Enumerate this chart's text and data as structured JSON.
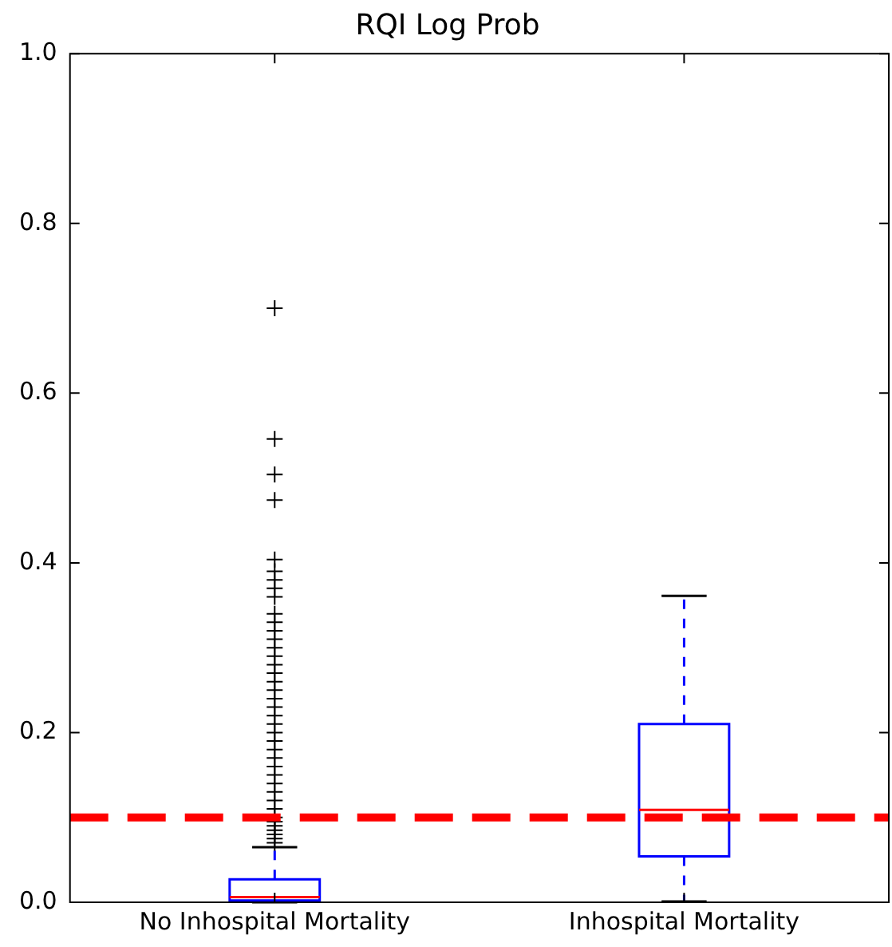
{
  "chart_data": {
    "type": "box",
    "title": "RQI Log Prob",
    "categories": [
      "No Inhospital Mortality",
      "Inhospital Mortality"
    ],
    "boxes": [
      {
        "low": 0,
        "q1": 0.002,
        "median": 0.006,
        "q3": 0.027,
        "high": 0.065,
        "outliers": [
          0.07,
          0.075,
          0.08,
          0.085,
          0.09,
          0.095,
          0.1,
          0.11,
          0.12,
          0.13,
          0.14,
          0.15,
          0.16,
          0.17,
          0.18,
          0.19,
          0.2,
          0.21,
          0.22,
          0.23,
          0.24,
          0.25,
          0.26,
          0.27,
          0.28,
          0.29,
          0.3,
          0.31,
          0.32,
          0.33,
          0.34,
          0.36,
          0.37,
          0.38,
          0.39,
          0.404,
          0.474,
          0.504,
          0.546,
          0.7
        ]
      },
      {
        "low": 0.001,
        "q1": 0.054,
        "median": 0.109,
        "q3": 0.21,
        "high": 0.361
      }
    ],
    "color": "#0000ff",
    "ylim": [
      0,
      1
    ],
    "yticks": [
      {
        "value": 0,
        "label": "0.0"
      },
      {
        "value": 0.2,
        "label": "0.2"
      },
      {
        "value": 0.4,
        "label": "0.4"
      },
      {
        "value": 0.6,
        "label": "0.6"
      },
      {
        "value": 0.8,
        "label": "0.8"
      },
      {
        "value": 1,
        "label": "1.0"
      }
    ],
    "ref_lines": [
      {
        "axis": "y",
        "value": 0.1,
        "color": "#ff0000",
        "line_style": "dashed"
      }
    ],
    "grid": false,
    "legend": false
  }
}
